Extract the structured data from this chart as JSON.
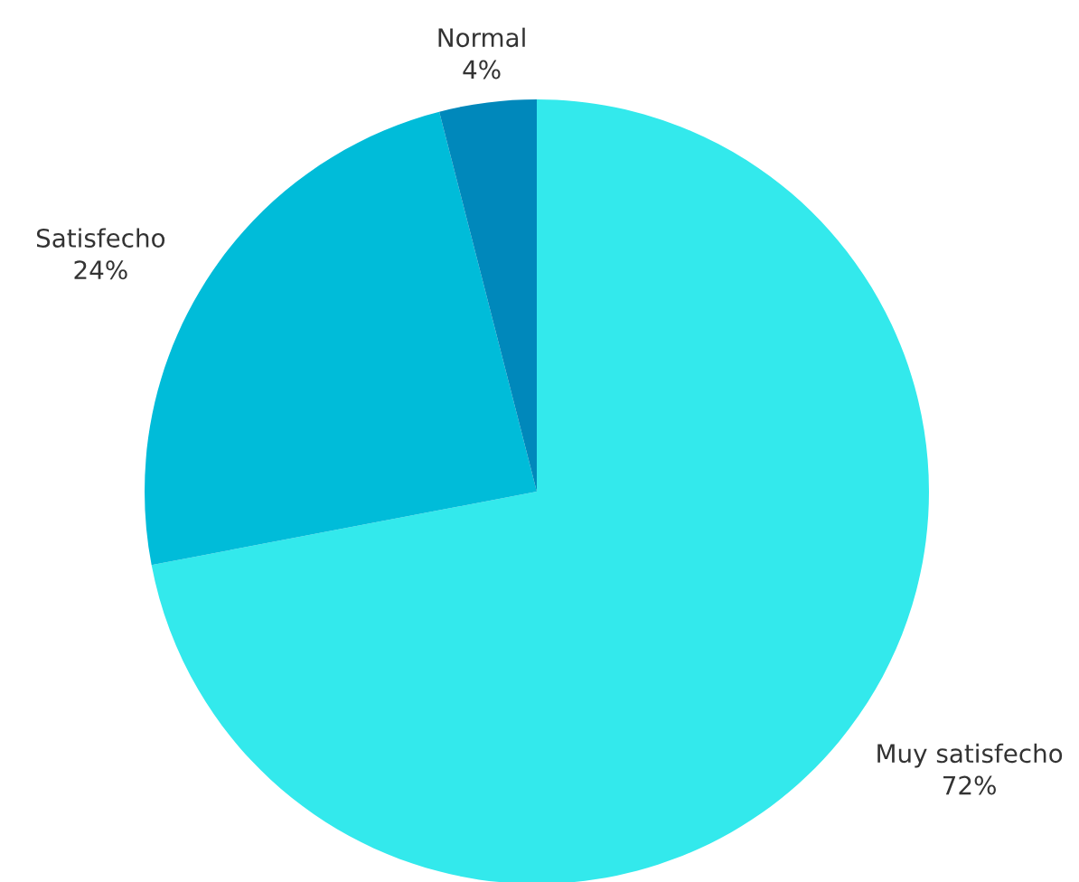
{
  "chart_data": {
    "type": "pie",
    "categories": [
      "Muy satisfecho",
      "Satisfecho",
      "Normal"
    ],
    "values": [
      72,
      24,
      4
    ],
    "value_labels": [
      "72%",
      "24%",
      "4%"
    ],
    "colors": [
      "#33e9ec",
      "#00bcd9",
      "#0088bb"
    ],
    "legend": false
  }
}
